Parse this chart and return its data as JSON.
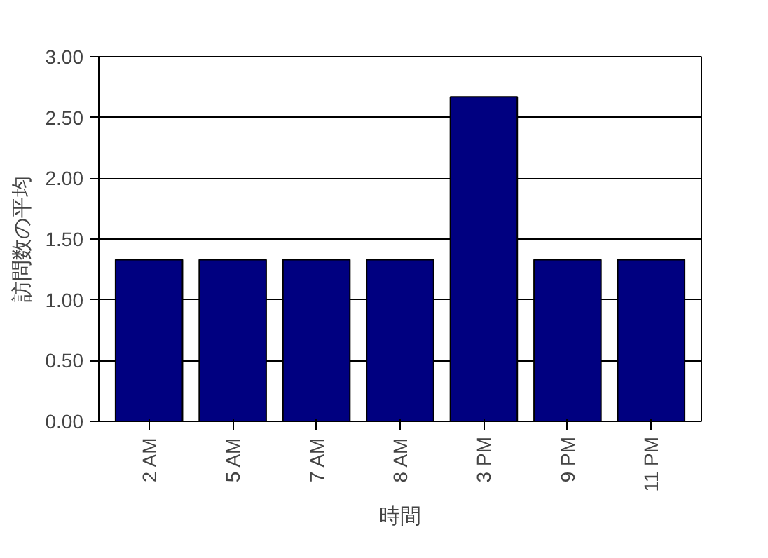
{
  "chart_data": {
    "type": "bar",
    "xlabel": "時間",
    "ylabel": "訪問数の平均",
    "categories": [
      "2 AM",
      "5 AM",
      "7 AM",
      "8 AM",
      "3 PM",
      "9 PM",
      "11 PM"
    ],
    "values": [
      1.33,
      1.33,
      1.33,
      1.33,
      2.67,
      1.33,
      1.33
    ],
    "color": "#000080",
    "ylim": [
      0,
      3
    ],
    "yticks": [
      {
        "value": 0,
        "label": "0.00"
      },
      {
        "value": 0.5,
        "label": "0.50"
      },
      {
        "value": 1,
        "label": "1.00"
      },
      {
        "value": 1.5,
        "label": "1.50"
      },
      {
        "value": 2,
        "label": "2.00"
      },
      {
        "value": 2.5,
        "label": "2.50"
      },
      {
        "value": 3,
        "label": "3.00"
      }
    ],
    "grid": "y"
  }
}
